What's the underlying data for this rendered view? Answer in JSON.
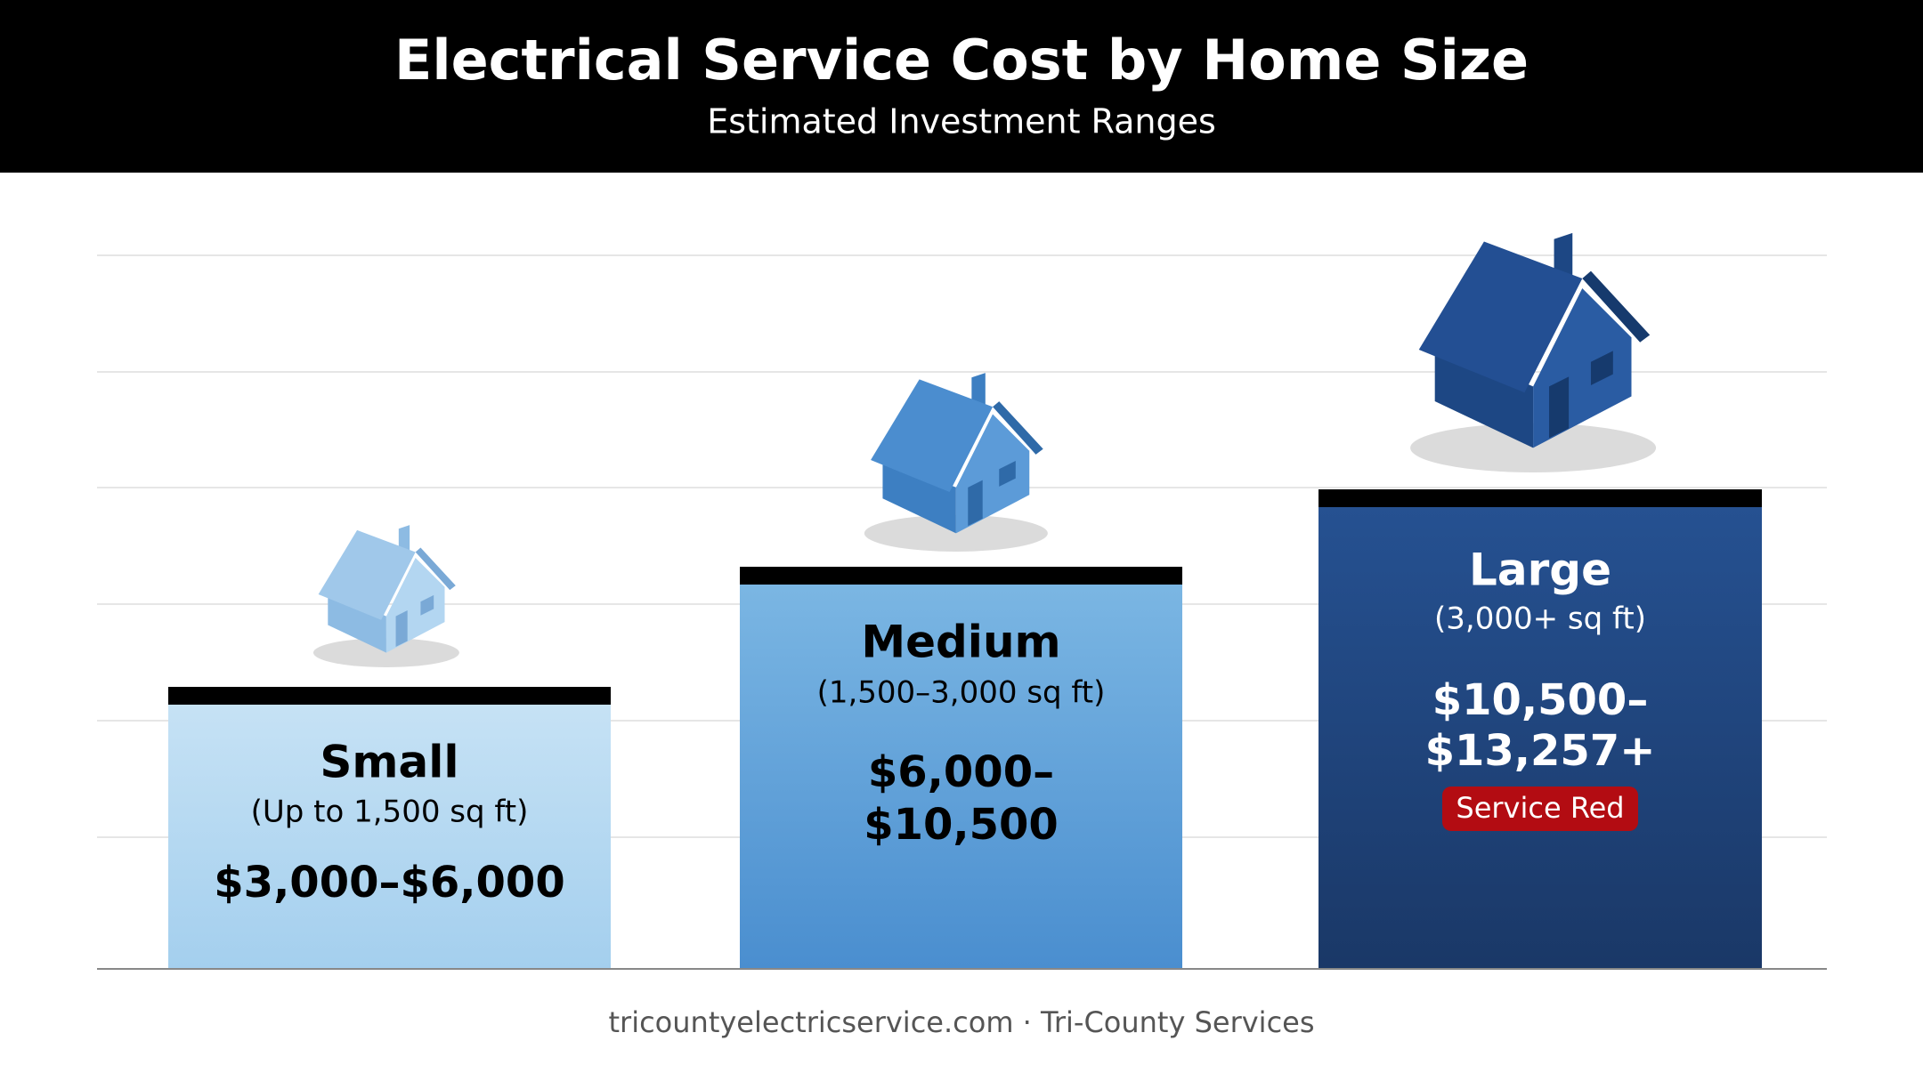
{
  "header": {
    "title": "Electrical Service Cost by Home Size",
    "subtitle": "Estimated Investment Ranges"
  },
  "tiers": [
    {
      "name": "Small",
      "size": "(Up to 1,500 sq ft)",
      "price_lines": [
        "$3,000–$6,000"
      ]
    },
    {
      "name": "Medium",
      "size": "(1,500–3,000 sq ft)",
      "price_lines": [
        "$6,000–",
        "$10,500"
      ]
    },
    {
      "name": "Large",
      "size": "(3,000+ sq ft)",
      "price_lines": [
        "$10,500–",
        "$13,257+"
      ],
      "badge": "Service Red"
    }
  ],
  "footer": "tricountyelectricservice.com · Tri-County Services"
}
